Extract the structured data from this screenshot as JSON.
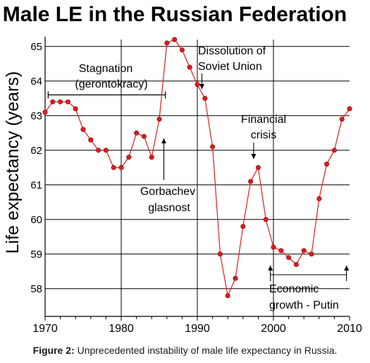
{
  "chart_data": {
    "type": "line",
    "title": "Male LE in the Russian Federation",
    "ylabel": "Life expectancy (years)",
    "xlabel": "",
    "xlim": [
      1970,
      2010
    ],
    "ylim": [
      57.2,
      65.2
    ],
    "grid": true,
    "x_ticks": [
      "1970",
      "1980",
      "1990",
      "2000",
      "2010"
    ],
    "y_ticks": [
      "58",
      "59",
      "60",
      "61",
      "62",
      "63",
      "64",
      "65"
    ],
    "series": [
      {
        "name": "",
        "color": "#e31a1c",
        "x": [
          1970,
          1971,
          1972,
          1973,
          1974,
          1975,
          1976,
          1977,
          1978,
          1979,
          1980,
          1981,
          1982,
          1983,
          1984,
          1985,
          1986,
          1987,
          1988,
          1989,
          1990,
          1991,
          1992,
          1993,
          1994,
          1995,
          1996,
          1997,
          1998,
          1999,
          2000,
          2001,
          2002,
          2003,
          2004,
          2005,
          2006,
          2007,
          2008,
          2009,
          2010
        ],
        "values": [
          63.1,
          63.4,
          63.4,
          63.4,
          63.2,
          62.6,
          62.3,
          62.0,
          62.0,
          61.5,
          61.5,
          61.8,
          62.5,
          62.4,
          61.8,
          62.9,
          65.1,
          65.2,
          64.9,
          64.4,
          63.9,
          63.5,
          62.1,
          59.0,
          57.8,
          58.3,
          59.8,
          61.1,
          61.5,
          60.0,
          59.2,
          59.1,
          58.9,
          58.7,
          59.1,
          59.0,
          60.6,
          61.6,
          62.0,
          62.9,
          63.2
        ]
      }
    ],
    "annotations": {
      "stagnation_line1": "Stagnation",
      "stagnation_line2": "(gerontokracy)",
      "dissolution_line1": "Dissolution of",
      "dissolution_line2": "Soviet Union",
      "financial_line1": "Financial",
      "financial_line2": "crisis",
      "gorbachev_line1": "Gorbachev",
      "gorbachev_line2": "glasnost",
      "economic_line1": "Economic",
      "economic_line2": "growth - Putin"
    }
  },
  "caption": {
    "label": "Figure 2:",
    "text": " Unprecedented instability of male life expectancy in Russia."
  }
}
